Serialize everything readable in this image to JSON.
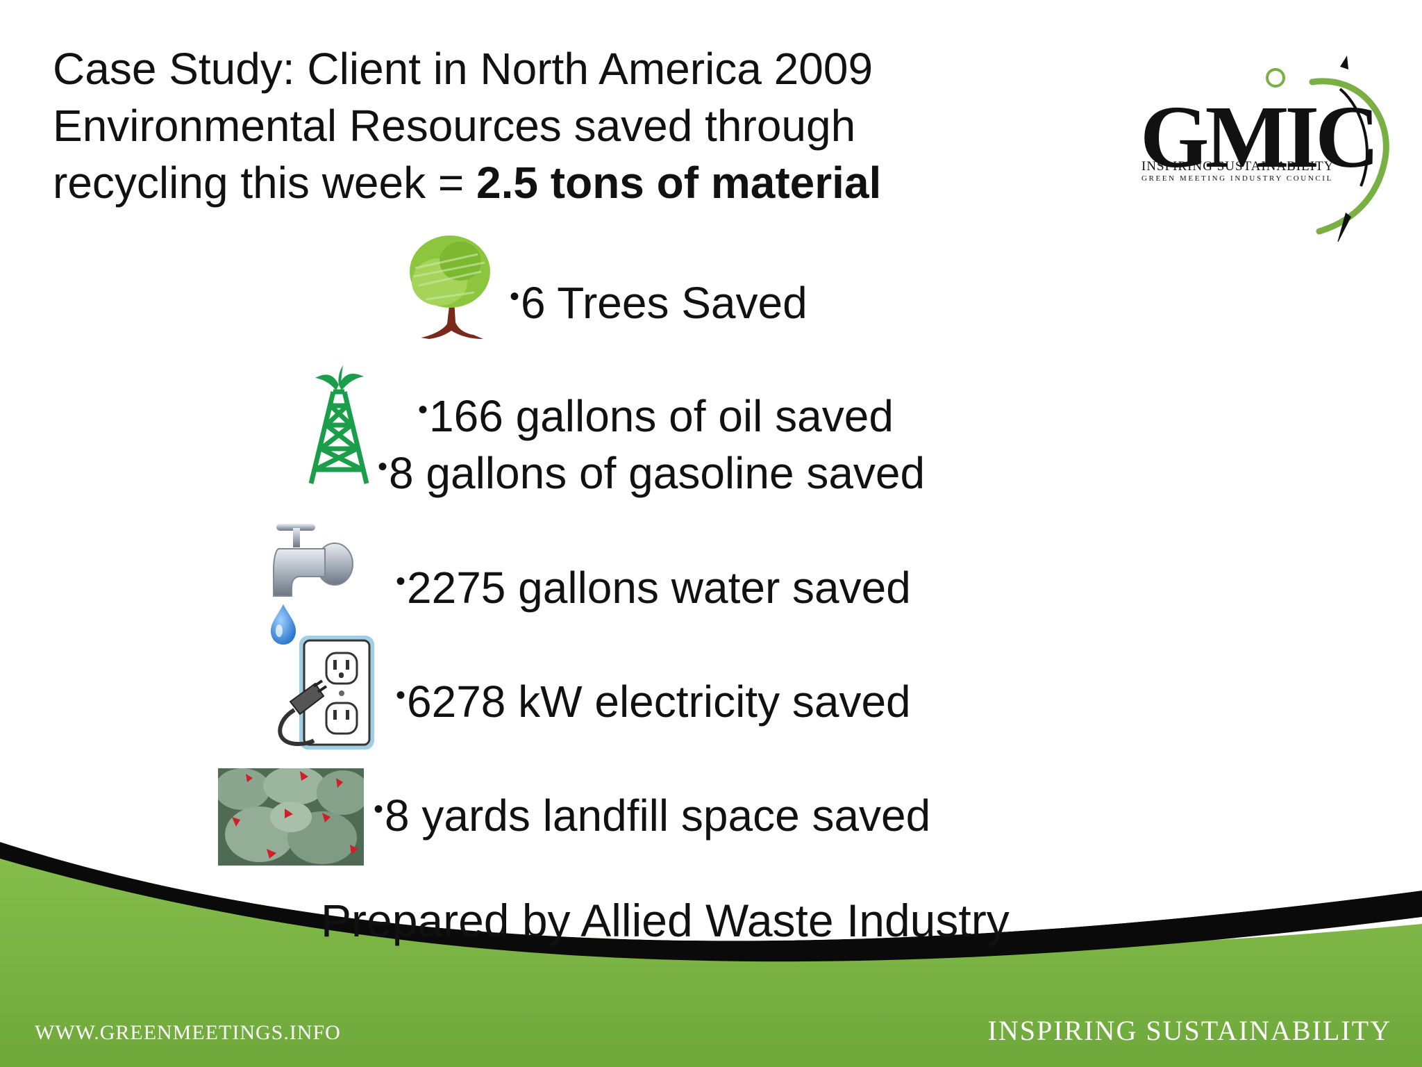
{
  "slide": {
    "title": {
      "line1": "Case Study: Client in North America 2009",
      "line2": "Environmental Resources saved through",
      "line3_prefix": "recycling this week = ",
      "line3_bold": "2.5 tons of material"
    },
    "logo": {
      "wordmark": "GMIC",
      "tagline": "INSPIRING SUSTAINABILITY",
      "subtitle": "GREEN MEETING INDUSTRY COUNCIL"
    },
    "bullet_char": "•",
    "bullets": [
      {
        "text": "6 Trees Saved",
        "icon": "tree-icon"
      },
      {
        "text": "166 gallons of oil saved",
        "icon": "oil-derrick-icon"
      },
      {
        "text": "8 gallons of gasoline saved",
        "icon": "oil-derrick-icon"
      },
      {
        "text": "2275 gallons water saved",
        "icon": "faucet-icon"
      },
      {
        "text": "6278 kW electricity saved",
        "icon": "power-outlet-icon"
      },
      {
        "text": "8 yards landfill space saved",
        "icon": "trash-bags-icon"
      }
    ],
    "prepared_by": "Prepared by Allied Waste Industry",
    "footer": {
      "website": "WWW.GREENMEETINGS.INFO",
      "slogan": "INSPIRING SUSTAINABILITY"
    },
    "colors": {
      "footer_green": "#78b043",
      "swoosh_black": "#0a0a0a",
      "tree_green": "#8cc63f",
      "derrick_green": "#1a9e4a",
      "water_blue": "#2a7fd4"
    }
  }
}
